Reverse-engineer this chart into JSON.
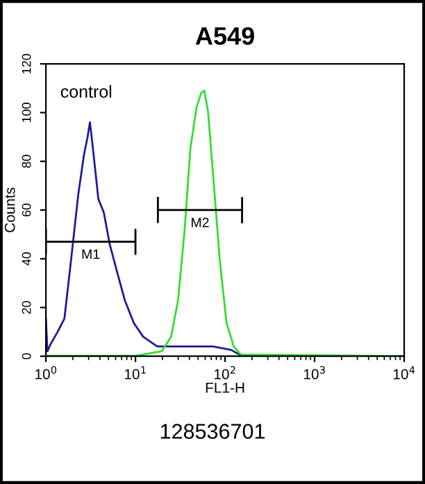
{
  "chart_data": {
    "type": "line",
    "title": "A549",
    "xlabel": "FL1-H",
    "ylabel": "Counts",
    "log": "x",
    "xlim": [
      1,
      10000
    ],
    "xticks": [
      {
        "value": 1,
        "label": "10$^{0}$"
      },
      {
        "value": 10,
        "label": "10$^{1}$"
      },
      {
        "value": 100,
        "label": "10$^{2}$"
      },
      {
        "value": 1000,
        "label": "10$^{3}$"
      },
      {
        "value": 10000,
        "label": "10$^{4}$"
      }
    ],
    "ylim": [
      0,
      120
    ],
    "yticks": [
      0,
      20,
      40,
      60,
      80,
      100,
      120
    ],
    "grid": false,
    "legend": false,
    "marker": "none",
    "line_style": "solid",
    "series": [
      {
        "color": "#1c1c96",
        "x": [
          1,
          1.04,
          1.13,
          1.35,
          1.61,
          1.93,
          2.3,
          2.66,
          2.92,
          3.1,
          3.29,
          3.85,
          4.43,
          5.18,
          6.3,
          7.6,
          9.6,
          12.2,
          17.5,
          25,
          45,
          73,
          117,
          149,
          300,
          10000
        ],
        "values": [
          15.5,
          2,
          5,
          10,
          15.5,
          41,
          66.5,
          82.6,
          90,
          96,
          88,
          64.6,
          59,
          45.7,
          34,
          23,
          13.6,
          8,
          4,
          4,
          4,
          4,
          2.6,
          0.4,
          0,
          0
        ]
      },
      {
        "color": "#33dd33",
        "x": [
          1,
          10,
          19.6,
          25,
          29.9,
          35.6,
          40.9,
          48,
          54,
          58.7,
          64.6,
          74.5,
          87,
          104,
          125,
          150,
          10000
        ],
        "values": [
          0.2,
          0.2,
          2,
          8,
          23,
          53,
          85,
          102,
          108,
          109,
          100.5,
          72,
          40,
          13.6,
          4,
          0.7,
          0
        ]
      },
      {
        "name": "M1",
        "color": "#000000",
        "x": [
          1,
          1,
          1,
          10,
          10,
          10
        ],
        "values": [
          52,
          42,
          47,
          47,
          52,
          42
        ]
      },
      {
        "name": "M2",
        "color": "#000000",
        "x": [
          17.8,
          17.8,
          17.8,
          155,
          155,
          155
        ],
        "values": [
          65,
          55,
          60,
          60,
          65,
          55
        ]
      }
    ],
    "annotations": [
      "control",
      "128536701"
    ]
  }
}
